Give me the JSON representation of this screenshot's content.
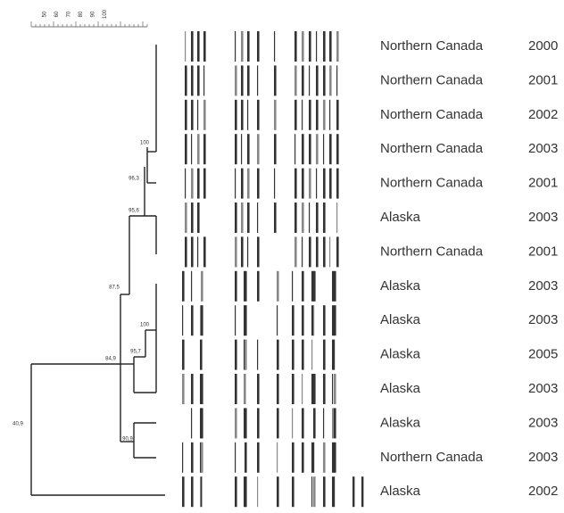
{
  "scale": {
    "ticks": [
      "50",
      "60",
      "70",
      "80",
      "90",
      "100"
    ]
  },
  "tree": {
    "node_labels": [
      "100",
      "96,3",
      "95,6",
      "87,5",
      "100",
      "95,7",
      "84,9",
      "90,9",
      "40,9"
    ]
  },
  "rows": [
    {
      "region": "Northern Canada",
      "year": "2000"
    },
    {
      "region": "Northern Canada",
      "year": "2001"
    },
    {
      "region": "Northern Canada",
      "year": "2002"
    },
    {
      "region": "Northern Canada",
      "year": "2003"
    },
    {
      "region": "Northern Canada",
      "year": "2001"
    },
    {
      "region": "Alaska",
      "year": "2003"
    },
    {
      "region": "Northern Canada",
      "year": "2001"
    },
    {
      "region": "Alaska",
      "year": "2003"
    },
    {
      "region": "Alaska",
      "year": "2003"
    },
    {
      "region": "Alaska",
      "year": "2005"
    },
    {
      "region": "Alaska",
      "year": "2003"
    },
    {
      "region": "Alaska",
      "year": "2003"
    },
    {
      "region": "Northern Canada",
      "year": "2003"
    },
    {
      "region": "Alaska",
      "year": "2002"
    }
  ]
}
